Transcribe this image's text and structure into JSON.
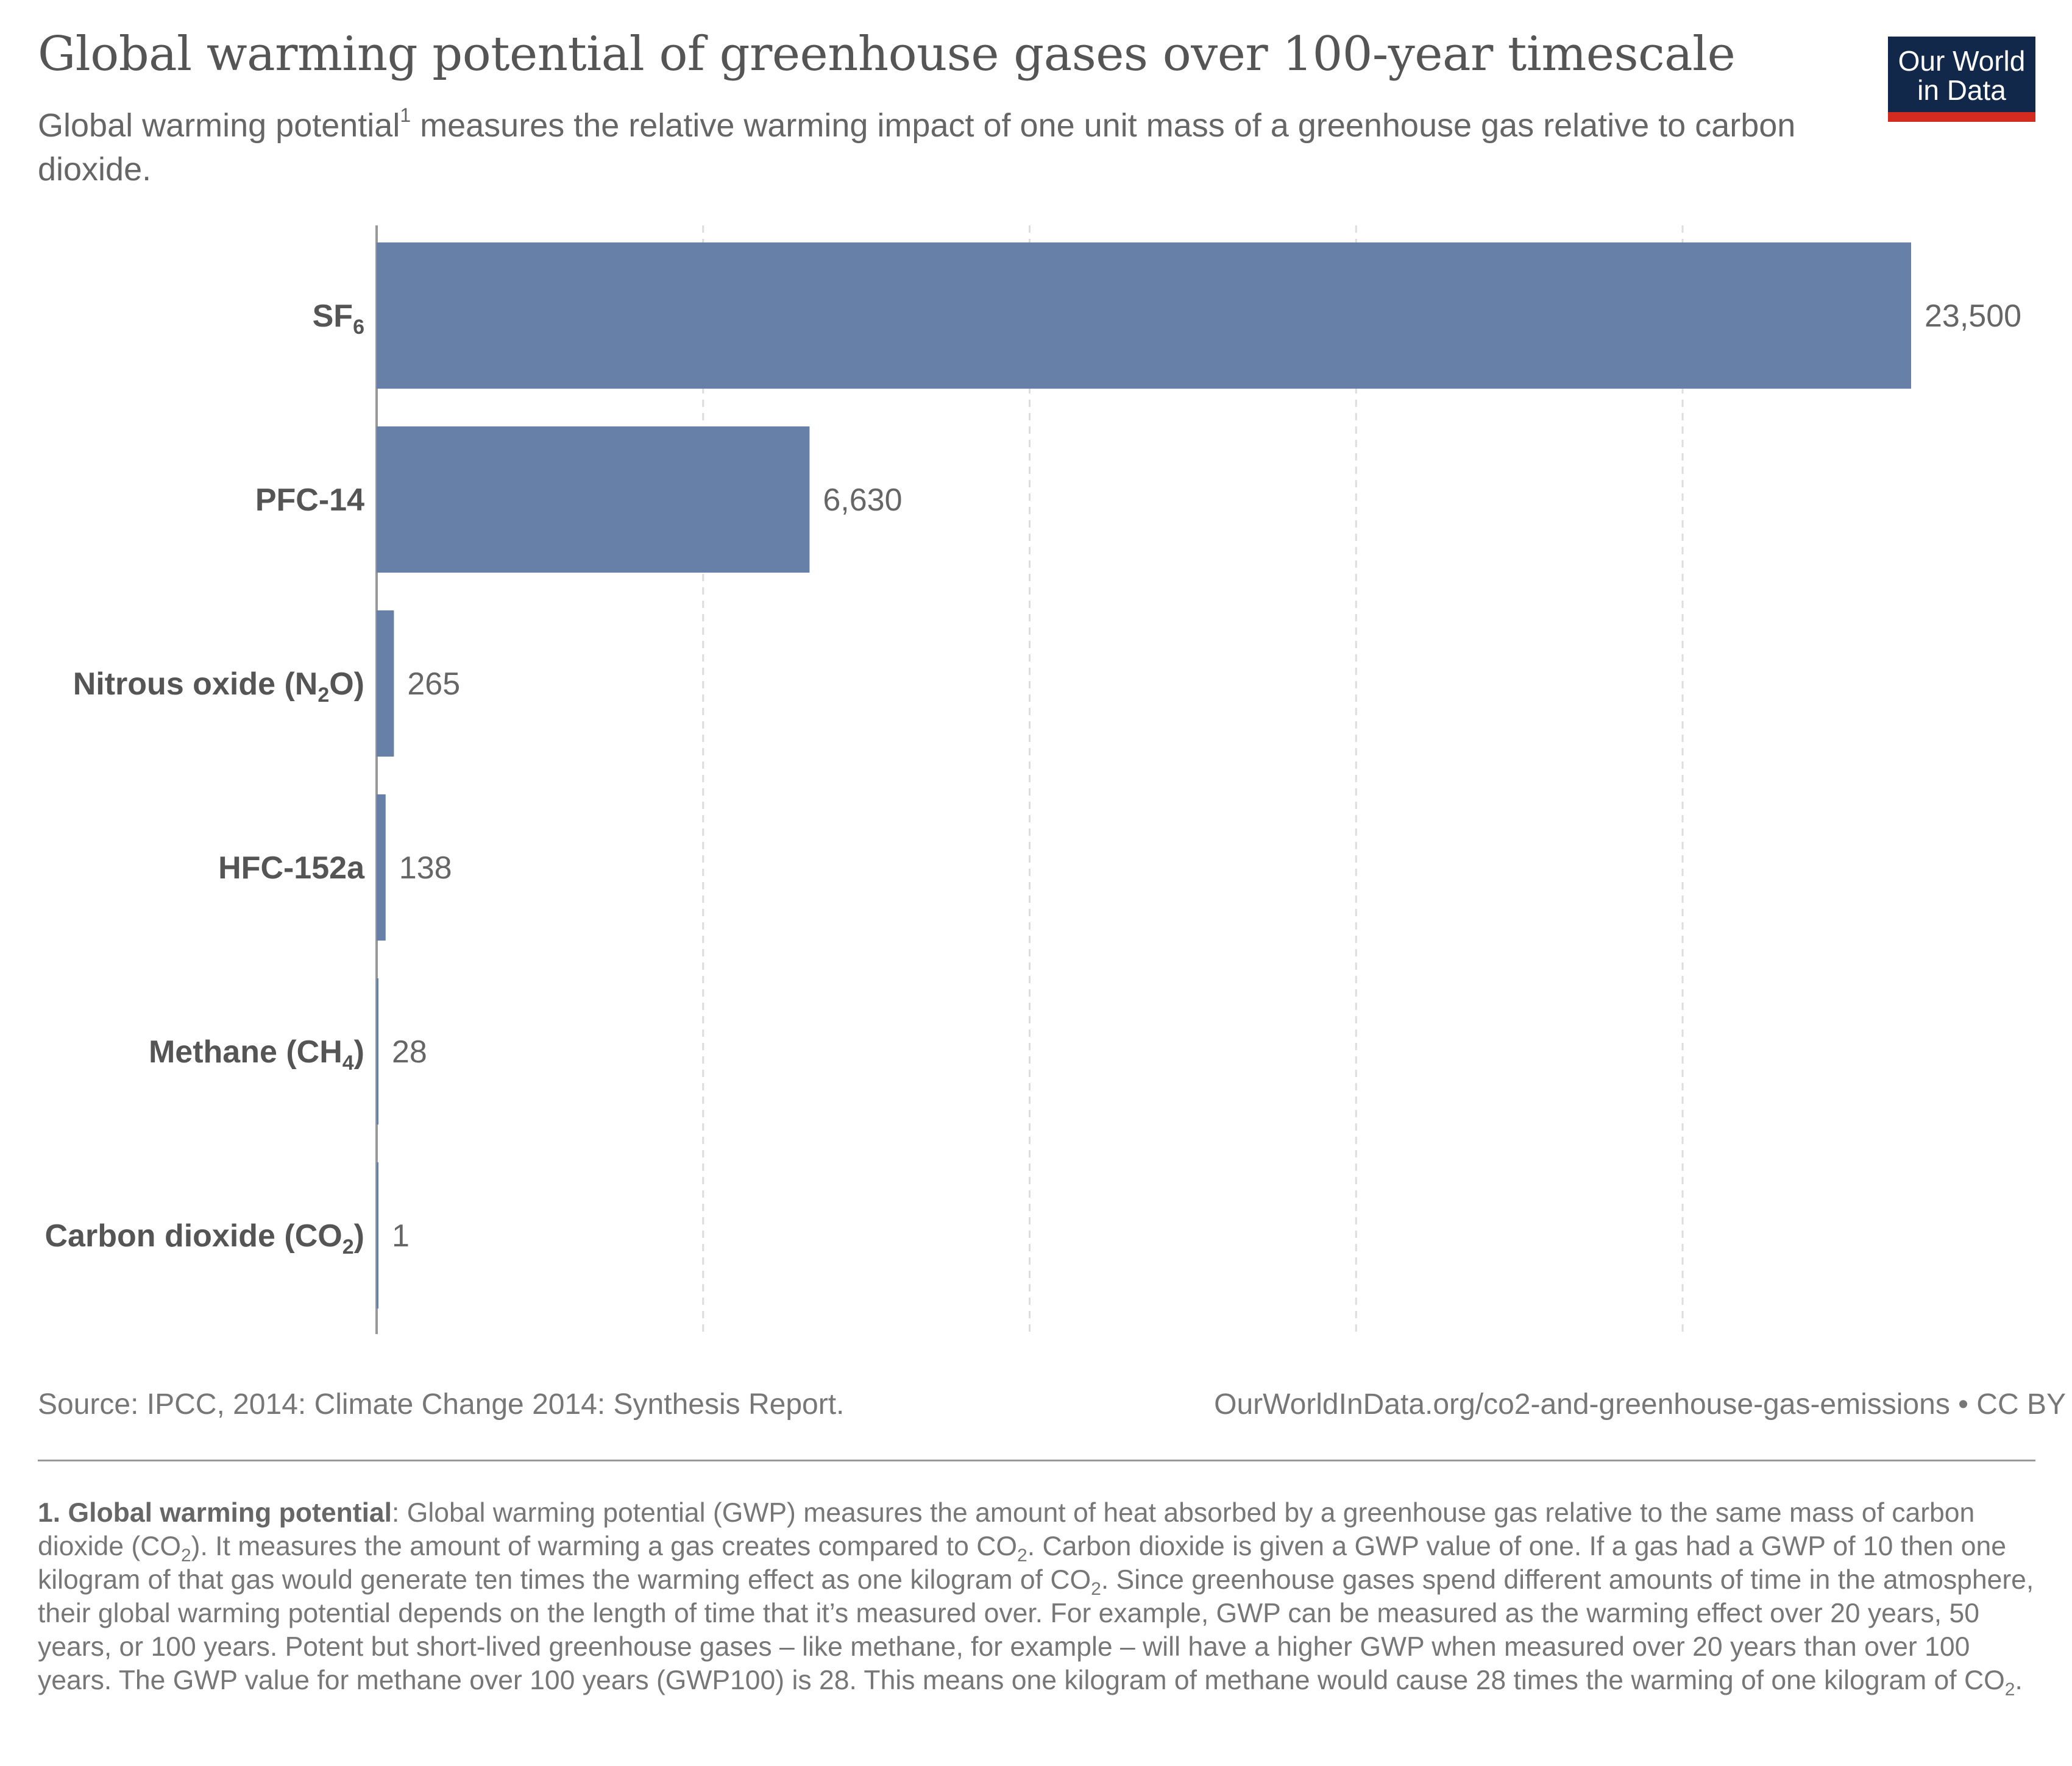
{
  "header": {
    "title": "Global warming potential of greenhouse gases over 100-year timescale",
    "subtitle": "Global warming potential",
    "subtitle_mark": "1",
    "subtitle_rest": " measures the relative warming impact of one unit mass of a greenhouse gas relative to carbon dioxide.",
    "logo_line1": "Our World",
    "logo_line2": "in Data"
  },
  "colors": {
    "bar": "#6780a7",
    "grid": "#dddddd",
    "axis": "#999999",
    "logo_bg": "#12284a",
    "logo_accent": "#d42b21"
  },
  "chart_data": {
    "type": "bar",
    "orientation": "horizontal",
    "categories": [
      "SF6",
      "PFC-14",
      "Nitrous oxide (N2O)",
      "HFC-152a",
      "Methane (CH4)",
      "Carbon dioxide (CO2)"
    ],
    "category_labels": [
      {
        "main": "SF",
        "sub": "6",
        "after": ""
      },
      {
        "main": "PFC-14",
        "sub": "",
        "after": ""
      },
      {
        "main": "Nitrous oxide (N",
        "sub": "2",
        "after": "O)"
      },
      {
        "main": "HFC-152a",
        "sub": "",
        "after": ""
      },
      {
        "main": "Methane (CH",
        "sub": "4",
        "after": ")"
      },
      {
        "main": "Carbon dioxide (CO",
        "sub": "2",
        "after": ")"
      }
    ],
    "values": [
      23500,
      6630,
      265,
      138,
      28,
      1
    ],
    "value_labels": [
      "23,500",
      "6,630",
      "265",
      "138",
      "28",
      "1"
    ],
    "xlim": [
      0,
      23500
    ],
    "gridlines": [
      5000,
      10000,
      15000,
      20000
    ],
    "grid": true,
    "title": "Global warming potential of greenhouse gases over 100-year timescale"
  },
  "footer": {
    "source": "Source: IPCC, 2014: Climate Change 2014: Synthesis Report.",
    "credit": "OurWorldInData.org/co2-and-greenhouse-gas-emissions • CC BY"
  },
  "footnote": {
    "heading": "1. Global warming potential",
    "p1": ": Global warming potential (GWP) measures the amount of heat absorbed by a greenhouse gas relative to the same mass of carbon dioxide (CO",
    "p2": "). It measures the amount of warming a gas creates compared to CO",
    "p3": ". Carbon dioxide is given a GWP value of one. If a gas had a GWP of 10 then one kilogram of that gas would generate ten times the warming effect as one kilogram of CO",
    "p4": ". Since greenhouse gases spend different amounts of time in the atmosphere, their global warming potential depends on the length of time that it’s measured over. For example, GWP can be measured as the warming effect over 20 years, 50 years, or 100 years. Potent but short-lived greenhouse gases – like methane, for example – will have a higher GWP when measured over 20 years than over 100 years. The GWP value for methane over 100 years (GWP100) is 28. This means one kilogram of methane would cause 28 times the warming of one kilogram of CO",
    "p5": ".",
    "sub": "2"
  }
}
